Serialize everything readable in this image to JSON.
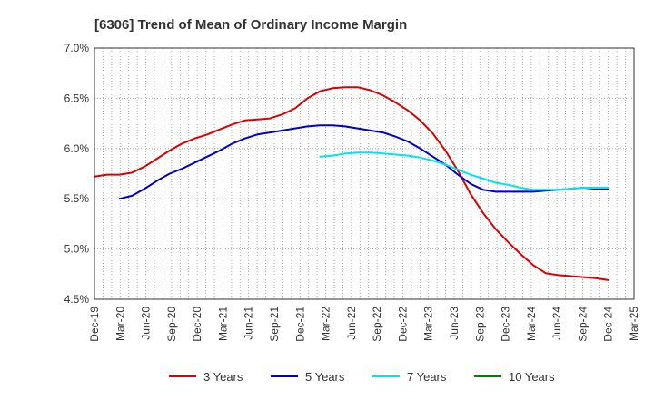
{
  "chart_data": {
    "type": "line",
    "title": "[6306]  Trend of Mean of Ordinary Income Margin",
    "xlabel": "",
    "ylabel": "",
    "x_tick_labels": [
      "Dec-19",
      "Mar-20",
      "Jun-20",
      "Sep-20",
      "Dec-20",
      "Mar-21",
      "Jun-21",
      "Sep-21",
      "Dec-21",
      "Mar-22",
      "Jun-22",
      "Sep-22",
      "Dec-22",
      "Mar-23",
      "Jun-23",
      "Sep-23",
      "Dec-23",
      "Mar-24",
      "Jun-24",
      "Sep-24",
      "Dec-24",
      "Mar-25"
    ],
    "y_tick_labels": [
      "7.0%",
      "6.5%",
      "6.0%",
      "5.5%",
      "5.0%",
      "4.5%"
    ],
    "ylim": [
      4.5,
      7.0
    ],
    "grid": true,
    "legend_position": "bottom",
    "series": [
      {
        "name": "3 Years",
        "color": "#dd0000",
        "values": [
          5.72,
          5.74,
          5.74,
          5.76,
          5.82,
          5.9,
          5.98,
          6.05,
          6.1,
          6.14,
          6.19,
          6.24,
          6.28,
          6.29,
          6.3,
          6.34,
          6.4,
          6.5,
          6.57,
          6.6,
          6.61,
          6.61,
          6.58,
          6.53,
          6.46,
          6.38,
          6.28,
          6.15,
          5.98,
          5.78,
          5.55,
          5.36,
          5.2,
          5.07,
          4.95,
          4.84,
          4.76,
          4.74,
          4.73,
          4.72,
          4.71,
          4.69
        ]
      },
      {
        "name": "5 Years",
        "color": "#0000cc",
        "values": [
          null,
          null,
          5.5,
          5.53,
          5.6,
          5.68,
          5.75,
          5.8,
          5.86,
          5.92,
          5.98,
          6.05,
          6.1,
          6.14,
          6.16,
          6.18,
          6.2,
          6.22,
          6.23,
          6.23,
          6.22,
          6.2,
          6.18,
          6.16,
          6.12,
          6.07,
          6.0,
          5.92,
          5.84,
          5.74,
          5.65,
          5.59,
          5.57,
          5.57,
          5.57,
          5.57,
          5.58,
          5.59,
          5.6,
          5.61,
          5.6,
          5.6
        ]
      },
      {
        "name": "7 Years",
        "color": "#00e5ee",
        "values": [
          null,
          null,
          null,
          null,
          null,
          null,
          null,
          null,
          null,
          null,
          null,
          null,
          null,
          null,
          null,
          null,
          null,
          null,
          5.92,
          5.93,
          5.95,
          5.96,
          5.96,
          5.95,
          5.94,
          5.93,
          5.91,
          5.88,
          5.84,
          5.79,
          5.74,
          5.7,
          5.66,
          5.64,
          5.61,
          5.59,
          5.59,
          5.59,
          5.6,
          5.61,
          5.61,
          5.61
        ]
      },
      {
        "name": "10 Years",
        "color": "#008000",
        "values": []
      }
    ]
  }
}
